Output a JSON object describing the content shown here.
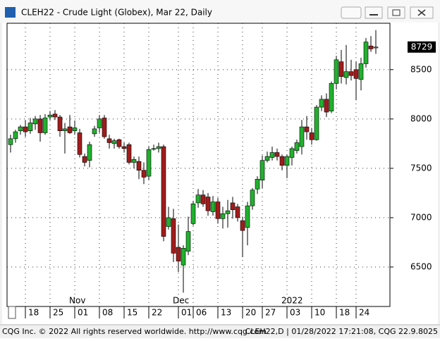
{
  "chart_data": {
    "type": "candlestick",
    "title": "CLEH22 - Crude Light (Globex), Mar 22, Daily",
    "categories": [
      null,
      null,
      null,
      "18",
      null,
      null,
      null,
      null,
      "25",
      null,
      null,
      null,
      null,
      "01",
      null,
      null,
      null,
      null,
      "08",
      null,
      null,
      null,
      null,
      "15",
      null,
      null,
      null,
      null,
      "22",
      null,
      null,
      null,
      null,
      null,
      "01",
      null,
      null,
      "06",
      null,
      null,
      null,
      null,
      "13",
      null,
      null,
      null,
      null,
      "20",
      null,
      null,
      null,
      "27",
      null,
      null,
      null,
      null,
      "03",
      null,
      null,
      null,
      null,
      "10",
      null,
      null,
      null,
      null,
      "18",
      null,
      null,
      null,
      "24",
      null,
      null,
      null,
      null
    ],
    "month_labels": [
      null,
      null,
      null,
      null,
      null,
      null,
      null,
      null,
      null,
      null,
      null,
      null,
      null,
      "Nov",
      null,
      null,
      null,
      null,
      null,
      null,
      null,
      null,
      null,
      null,
      null,
      null,
      null,
      null,
      null,
      null,
      null,
      null,
      null,
      null,
      "Dec",
      null,
      null,
      null,
      null,
      null,
      null,
      null,
      null,
      null,
      null,
      null,
      null,
      null,
      null,
      null,
      null,
      null,
      null,
      null,
      null,
      null,
      "2022",
      null,
      null,
      null,
      null,
      null,
      null,
      null,
      null,
      null,
      null,
      null,
      null,
      null,
      null,
      null,
      null,
      null,
      null
    ],
    "open": [
      7740,
      7800,
      7880,
      7920,
      7880,
      7950,
      8000,
      7860,
      8020,
      8050,
      8020,
      7880,
      7920,
      7880,
      7860,
      7620,
      7580,
      7850,
      7910,
      8010,
      7800,
      7750,
      7790,
      7720,
      7740,
      7560,
      7570,
      7480,
      7420,
      7700,
      7700,
      7720,
      6910,
      6990,
      6700,
      6520,
      6660,
      6940,
      7150,
      7230,
      7210,
      7060,
      7160,
      6990,
      7040,
      7150,
      7110,
      6970,
      6900,
      7120,
      7290,
      7380,
      7580,
      7610,
      7660,
      7620,
      7530,
      7610,
      7680,
      7720,
      7920,
      7860,
      7790,
      8120,
      8200,
      8080,
      8360,
      8580,
      8420,
      8480,
      8500,
      8400,
      8560,
      8740,
      8720
    ],
    "high": [
      7840,
      7890,
      7940,
      7990,
      8010,
      8030,
      8040,
      8050,
      8080,
      8090,
      8040,
      7960,
      8040,
      7980,
      7900,
      7650,
      7770,
      7930,
      8040,
      8040,
      7840,
      7800,
      7800,
      7760,
      7760,
      7620,
      7620,
      7560,
      7720,
      7740,
      7760,
      7740,
      7110,
      7090,
      6930,
      6720,
      7010,
      7170,
      7290,
      7280,
      7250,
      7220,
      7200,
      7110,
      7180,
      7210,
      7140,
      7010,
      7160,
      7300,
      7420,
      7630,
      7670,
      7720,
      7700,
      7640,
      7640,
      7720,
      7790,
      7990,
      8030,
      7910,
      8140,
      8240,
      8260,
      8380,
      8640,
      8700,
      8750,
      8600,
      8580,
      8620,
      8820,
      8840,
      8900
    ],
    "low": [
      7660,
      7760,
      7840,
      7820,
      7850,
      7890,
      7770,
      7840,
      7990,
      7990,
      7820,
      7650,
      7850,
      7840,
      7610,
      7520,
      7510,
      7820,
      7860,
      7800,
      7700,
      7700,
      7700,
      7660,
      7540,
      7500,
      7390,
      7340,
      7380,
      7680,
      7660,
      6760,
      6880,
      6550,
      6450,
      6240,
      6620,
      6920,
      7100,
      7110,
      7020,
      7020,
      6940,
      6890,
      6900,
      6990,
      6960,
      6600,
      6720,
      7080,
      7240,
      7300,
      7560,
      7580,
      7580,
      7480,
      7400,
      7530,
      7650,
      7640,
      7790,
      7740,
      7780,
      8080,
      8020,
      8060,
      8300,
      8360,
      8350,
      8390,
      8190,
      8290,
      8520,
      8680,
      8660
    ],
    "close": [
      7800,
      7870,
      7920,
      7870,
      7960,
      8000,
      7860,
      8010,
      8040,
      8020,
      7880,
      7900,
      7860,
      7910,
      7640,
      7560,
      7740,
      7900,
      8000,
      7820,
      7760,
      7780,
      7720,
      7700,
      7560,
      7590,
      7480,
      7410,
      7690,
      7700,
      7720,
      6810,
      7000,
      6640,
      6560,
      6690,
      6860,
      7140,
      7230,
      7140,
      7070,
      7160,
      6990,
      7040,
      7070,
      7080,
      7000,
      6870,
      7120,
      7280,
      7390,
      7580,
      7620,
      7660,
      7620,
      7530,
      7620,
      7700,
      7760,
      7920,
      7870,
      7790,
      8120,
      8200,
      8070,
      8360,
      8600,
      8430,
      8480,
      8440,
      8410,
      8560,
      8780,
      8710,
      8729
    ],
    "up_color": "#21b02e",
    "down_color": "#a01c1c",
    "ylim": [
      6100,
      8970
    ],
    "yticks": [
      6500,
      7000,
      7500,
      8000,
      8500
    ],
    "grid": true
  },
  "footer": {
    "left": "CQG Inc. © 2022 All rights reserved worldwide. http://www.cqg.com",
    "right": "CLEH22,D | 01/28/2022 17:21:08, CQG 22.9.8025"
  }
}
